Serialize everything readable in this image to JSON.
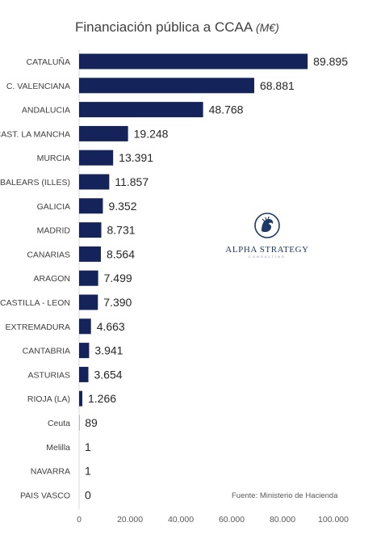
{
  "title": "Financiación pública a CCAA",
  "title_unit": "(M€)",
  "source": "Fuente: Ministerio de Hacienda",
  "logo": {
    "brand": "ALPHA STRATEGY",
    "sub": "CONSULTING",
    "icon": "lion-head-icon"
  },
  "colors": {
    "bar": "#142359",
    "text": "#404040"
  },
  "chart_data": {
    "type": "bar",
    "orientation": "horizontal",
    "categories": [
      "CATALUÑA",
      "C. VALENCIANA",
      "ANDALUCIA",
      "CAST. LA MANCHA",
      "MURCIA",
      "BALEARS (ILLES)",
      "GALICIA",
      "MADRID",
      "CANARIAS",
      "ARAGON",
      "CASTILLA - LEON",
      "EXTREMADURA",
      "CANTABRIA",
      "ASTURIAS",
      "RIOJA (LA)",
      "Ceuta",
      "Melilla",
      "NAVARRA",
      "PAIS VASCO"
    ],
    "values": [
      89895,
      68881,
      48768,
      19248,
      13391,
      11857,
      9352,
      8731,
      8564,
      7499,
      7390,
      4663,
      3941,
      3654,
      1266,
      89,
      1,
      1,
      0
    ],
    "value_labels": [
      "89.895",
      "68.881",
      "48.768",
      "19.248",
      "13.391",
      "11.857",
      "9.352",
      "8.731",
      "8.564",
      "7.499",
      "7.390",
      "4.663",
      "3.941",
      "3.654",
      "1.266",
      "89",
      "1",
      "1",
      "0"
    ],
    "xticks": [
      0,
      20000,
      40000,
      60000,
      80000,
      100000
    ],
    "xtick_labels": [
      "0",
      "20.000",
      "40.000",
      "60.000",
      "80.000",
      "100.000"
    ],
    "xlim": [
      0,
      100000
    ],
    "title": "Financiación pública a CCAA (M€)",
    "grid": false,
    "legend": "none"
  }
}
